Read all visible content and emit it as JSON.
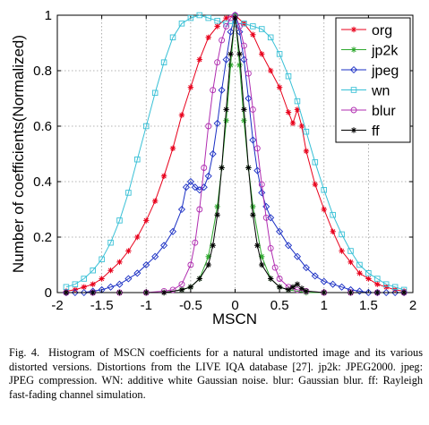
{
  "chart_data": {
    "type": "line",
    "xlabel": "MSCN",
    "ylabel": "Number of coefficients(Normalized)",
    "xlim": [
      -2,
      2
    ],
    "ylim": [
      0,
      1
    ],
    "x_ticks": [
      "-2",
      "-1.5",
      "-1",
      "-0.5",
      "0",
      "0.5",
      "1",
      "1.5",
      "2"
    ],
    "y_ticks": [
      "0",
      "0.2",
      "0.4",
      "0.6",
      "0.8",
      "1"
    ],
    "grid": true,
    "legend_position": "top-right",
    "series": [
      {
        "name": "org",
        "color": "#e8001b",
        "marker": "star",
        "x": [
          -1.9,
          -1.8,
          -1.7,
          -1.6,
          -1.5,
          -1.4,
          -1.3,
          -1.2,
          -1.1,
          -1.0,
          -0.9,
          -0.8,
          -0.7,
          -0.6,
          -0.5,
          -0.4,
          -0.3,
          -0.2,
          -0.1,
          0.0,
          0.1,
          0.2,
          0.3,
          0.4,
          0.5,
          0.6,
          0.65,
          0.7,
          0.75,
          0.8,
          0.9,
          1.0,
          1.1,
          1.2,
          1.3,
          1.4,
          1.5,
          1.6,
          1.7,
          1.8,
          1.9
        ],
        "y": [
          0.005,
          0.01,
          0.02,
          0.03,
          0.05,
          0.08,
          0.11,
          0.15,
          0.2,
          0.26,
          0.33,
          0.42,
          0.52,
          0.64,
          0.74,
          0.84,
          0.92,
          0.96,
          0.99,
          1.0,
          0.97,
          0.93,
          0.86,
          0.8,
          0.74,
          0.65,
          0.61,
          0.66,
          0.6,
          0.51,
          0.39,
          0.3,
          0.22,
          0.15,
          0.11,
          0.07,
          0.05,
          0.03,
          0.02,
          0.01,
          0.005
        ]
      },
      {
        "name": "jp2k",
        "color": "#2ea82e",
        "marker": "star",
        "x": [
          -1.9,
          -1.6,
          -1.3,
          -1.0,
          -0.8,
          -0.6,
          -0.5,
          -0.4,
          -0.3,
          -0.2,
          -0.15,
          -0.1,
          -0.05,
          0.0,
          0.05,
          0.1,
          0.15,
          0.2,
          0.3,
          0.4,
          0.5,
          0.6,
          0.8,
          1.0,
          1.3,
          1.6,
          1.9
        ],
        "y": [
          0,
          0,
          0,
          0,
          0,
          0.01,
          0.02,
          0.05,
          0.13,
          0.31,
          0.45,
          0.62,
          0.82,
          1.0,
          0.82,
          0.62,
          0.45,
          0.31,
          0.13,
          0.05,
          0.02,
          0.01,
          0,
          0,
          0,
          0,
          0
        ]
      },
      {
        "name": "jpeg",
        "color": "#1a2fc4",
        "marker": "diamond",
        "x": [
          -1.9,
          -1.8,
          -1.7,
          -1.6,
          -1.5,
          -1.4,
          -1.3,
          -1.2,
          -1.1,
          -1.0,
          -0.9,
          -0.8,
          -0.7,
          -0.6,
          -0.55,
          -0.5,
          -0.45,
          -0.4,
          -0.35,
          -0.3,
          -0.25,
          -0.2,
          -0.15,
          -0.1,
          -0.05,
          0.0,
          0.05,
          0.1,
          0.15,
          0.2,
          0.25,
          0.3,
          0.35,
          0.4,
          0.5,
          0.6,
          0.7,
          0.8,
          0.9,
          1.0,
          1.1,
          1.2,
          1.3,
          1.4,
          1.5,
          1.6,
          1.7,
          1.8,
          1.9
        ],
        "y": [
          0,
          0,
          0,
          0.005,
          0.01,
          0.02,
          0.03,
          0.05,
          0.07,
          0.1,
          0.13,
          0.17,
          0.22,
          0.3,
          0.38,
          0.4,
          0.38,
          0.37,
          0.38,
          0.42,
          0.5,
          0.61,
          0.73,
          0.84,
          0.94,
          1.0,
          0.94,
          0.84,
          0.7,
          0.55,
          0.44,
          0.36,
          0.31,
          0.27,
          0.22,
          0.17,
          0.13,
          0.09,
          0.06,
          0.04,
          0.03,
          0.02,
          0.01,
          0.005,
          0,
          0,
          0,
          0,
          0
        ]
      },
      {
        "name": "wn",
        "color": "#38c0d6",
        "marker": "square",
        "x": [
          -1.9,
          -1.8,
          -1.7,
          -1.6,
          -1.5,
          -1.4,
          -1.3,
          -1.2,
          -1.1,
          -1.0,
          -0.9,
          -0.8,
          -0.7,
          -0.6,
          -0.5,
          -0.4,
          -0.3,
          -0.2,
          -0.1,
          0.0,
          0.1,
          0.2,
          0.3,
          0.4,
          0.5,
          0.6,
          0.7,
          0.8,
          0.9,
          1.0,
          1.1,
          1.2,
          1.3,
          1.4,
          1.5,
          1.6,
          1.7,
          1.8,
          1.9
        ],
        "y": [
          0.02,
          0.03,
          0.05,
          0.08,
          0.12,
          0.18,
          0.26,
          0.36,
          0.48,
          0.6,
          0.72,
          0.83,
          0.92,
          0.97,
          0.99,
          1.0,
          0.99,
          0.98,
          0.97,
          0.97,
          0.97,
          0.96,
          0.95,
          0.92,
          0.86,
          0.78,
          0.69,
          0.58,
          0.47,
          0.37,
          0.28,
          0.21,
          0.15,
          0.1,
          0.07,
          0.05,
          0.03,
          0.02,
          0.01
        ]
      },
      {
        "name": "blur",
        "color": "#b02cb0",
        "marker": "circle",
        "x": [
          -1.9,
          -1.6,
          -1.3,
          -1.0,
          -0.8,
          -0.7,
          -0.6,
          -0.5,
          -0.45,
          -0.4,
          -0.35,
          -0.3,
          -0.25,
          -0.2,
          -0.15,
          -0.1,
          -0.05,
          0.0,
          0.05,
          0.1,
          0.15,
          0.2,
          0.25,
          0.3,
          0.35,
          0.4,
          0.45,
          0.5,
          0.6,
          0.7,
          0.8,
          1.0,
          1.3,
          1.6,
          1.9
        ],
        "y": [
          0,
          0,
          0,
          0,
          0.005,
          0.01,
          0.03,
          0.1,
          0.18,
          0.3,
          0.45,
          0.6,
          0.73,
          0.83,
          0.91,
          0.96,
          0.99,
          1.0,
          0.96,
          0.89,
          0.79,
          0.66,
          0.52,
          0.39,
          0.27,
          0.16,
          0.09,
          0.05,
          0.02,
          0.01,
          0.005,
          0,
          0,
          0,
          0
        ]
      },
      {
        "name": "ff",
        "color": "#000000",
        "marker": "star",
        "x": [
          -1.9,
          -1.6,
          -1.3,
          -1.0,
          -0.8,
          -0.6,
          -0.5,
          -0.4,
          -0.3,
          -0.25,
          -0.2,
          -0.15,
          -0.1,
          -0.05,
          0.0,
          0.05,
          0.1,
          0.15,
          0.2,
          0.25,
          0.3,
          0.4,
          0.5,
          0.6,
          0.65,
          0.7,
          0.75,
          0.8,
          1.0,
          1.3,
          1.6,
          1.9
        ],
        "y": [
          0,
          0,
          0,
          0,
          0,
          0.01,
          0.02,
          0.05,
          0.1,
          0.17,
          0.28,
          0.45,
          0.66,
          0.86,
          0.99,
          0.86,
          0.66,
          0.45,
          0.28,
          0.17,
          0.1,
          0.05,
          0.02,
          0.01,
          0.02,
          0.03,
          0.015,
          0.005,
          0,
          0,
          0,
          0
        ]
      }
    ]
  },
  "caption": {
    "label": "Fig. 4.",
    "text": "Histogram of MSCN coefficients for a natural undistorted image and its various distorted versions. Distortions from the LIVE IQA database [27]. jp2k: JPEG2000. jpeg: JPEG compression. WN: additive white Gaussian noise. blur: Gaussian blur. ff: Rayleigh fast-fading channel simulation."
  }
}
